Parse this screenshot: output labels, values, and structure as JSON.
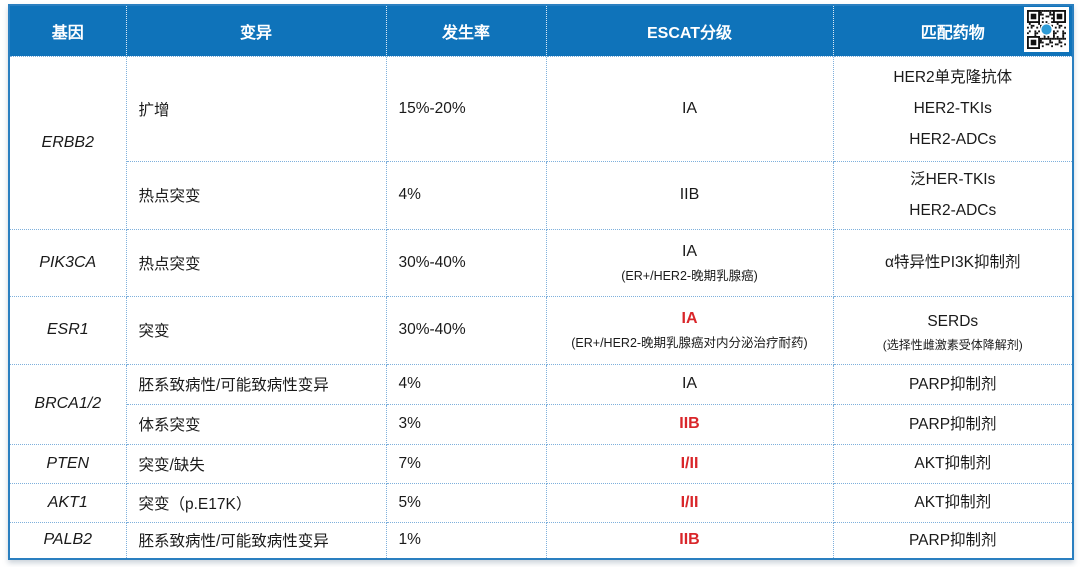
{
  "colors": {
    "header_bg": "#0F73BA",
    "header_text": "#FFFFFF",
    "grade_red": "#D9262A",
    "border_solid": "#2A7FC0",
    "border_dotted": "#7EB0DC",
    "body_text": "#1A1A1A",
    "qr_center_dot": "#2E9BD6"
  },
  "header": {
    "columns": [
      "基因",
      "变异",
      "发生率",
      "ESCAT分级",
      "匹配药物"
    ],
    "qr_icon": "qr-code"
  },
  "genes": [
    {
      "gene": "ERBB2",
      "variants": [
        {
          "variant": "扩增",
          "rate": "15%-20%",
          "escat": "IA",
          "escat_red": false,
          "drugs": [
            "HER2单克隆抗体",
            "HER2-TKIs",
            "HER2-ADCs"
          ]
        },
        {
          "variant": "热点突变",
          "rate": "4%",
          "escat": "IIB",
          "escat_red": false,
          "drugs": [
            "泛HER-TKIs",
            "HER2-ADCs"
          ]
        }
      ]
    },
    {
      "gene": "PIK3CA",
      "variants": [
        {
          "variant": "热点突变",
          "rate": "30%-40%",
          "escat": "IA",
          "escat_red": false,
          "escat_note": "(ER+/HER2-晚期乳腺癌)",
          "drugs": [
            "α特异性PI3K抑制剂"
          ]
        }
      ]
    },
    {
      "gene": "ESR1",
      "variants": [
        {
          "variant": "突变",
          "rate": "30%-40%",
          "escat": "IA",
          "escat_red": true,
          "escat_note": "(ER+/HER2-晚期乳腺癌对内分泌治疗耐药)",
          "drugs": [
            "SERDs"
          ],
          "drug_note": "(选择性雌激素受体降解剂)"
        }
      ]
    },
    {
      "gene": "BRCA1/2",
      "variants": [
        {
          "variant": "胚系致病性/可能致病性变异",
          "rate": "4%",
          "escat": "IA",
          "escat_red": false,
          "drugs": [
            "PARP抑制剂"
          ]
        },
        {
          "variant": "体系突变",
          "rate": "3%",
          "escat": "IIB",
          "escat_red": true,
          "drugs": [
            "PARP抑制剂"
          ]
        }
      ]
    },
    {
      "gene": "PTEN",
      "variants": [
        {
          "variant": "突变/缺失",
          "rate": "7%",
          "escat": "I/II",
          "escat_red": true,
          "drugs": [
            "AKT抑制剂"
          ]
        }
      ]
    },
    {
      "gene": "AKT1",
      "variants": [
        {
          "variant": "突变（p.E17K）",
          "rate": "5%",
          "escat": "I/II",
          "escat_red": true,
          "drugs": [
            "AKT抑制剂"
          ]
        }
      ]
    },
    {
      "gene": "PALB2",
      "variants": [
        {
          "variant": "胚系致病性/可能致病性变异",
          "rate": "1%",
          "escat": "IIB",
          "escat_red": true,
          "drugs": [
            "PARP抑制剂"
          ]
        }
      ]
    }
  ]
}
